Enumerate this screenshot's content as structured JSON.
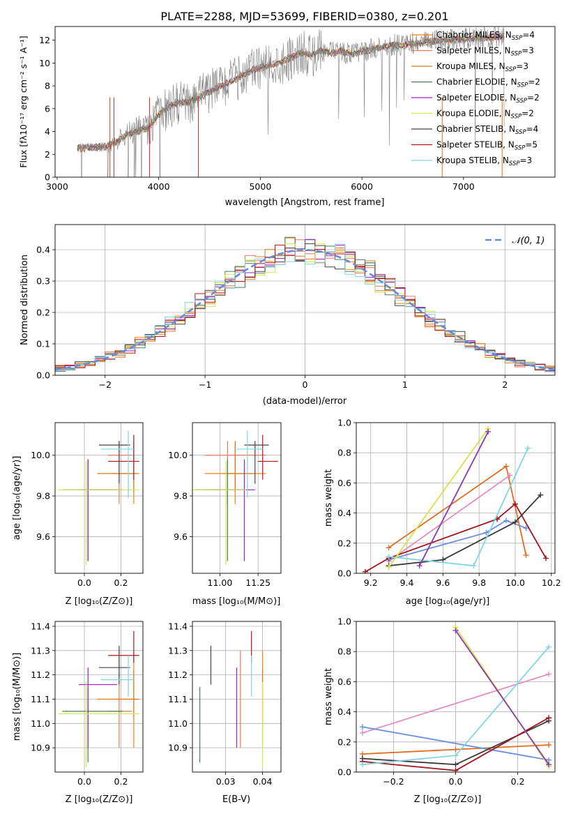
{
  "chart_data": [
    {
      "id": "spectrum",
      "type": "line",
      "title": "PLATE=2288, MJD=53699, FIBERID=0380, z=0.201",
      "xlabel": "wavelength [Angstrom, rest frame]",
      "ylabel": "Flux [fλ10⁻¹⁷ erg cm⁻² s⁻¹ A⁻¹]",
      "xlim": [
        2980,
        7900
      ],
      "ylim": [
        0,
        13.2
      ],
      "xticks": [
        3000,
        4000,
        5000,
        6000,
        7000
      ],
      "yticks": [
        0,
        2,
        4,
        6,
        8,
        10,
        12
      ],
      "grid": false,
      "legend_position": "top-right",
      "data_color": "#808080",
      "data_x": [
        3200,
        3300,
        3400,
        3500,
        3600,
        3700,
        3800,
        3900,
        4000,
        4100,
        4200,
        4300,
        4400,
        4500,
        4600,
        4700,
        4800,
        4900,
        5000,
        5100,
        5200,
        5300,
        5400,
        5500,
        5600,
        5700,
        5800,
        5900,
        6000,
        6100,
        6200,
        6300,
        6400,
        6500,
        6600,
        6700,
        6800,
        6900,
        7000,
        7100,
        7200,
        7300,
        7400
      ],
      "data_y": [
        2.5,
        2.6,
        2.6,
        2.7,
        3.2,
        3.8,
        4.1,
        4.3,
        5.5,
        6.2,
        6.5,
        6.6,
        7.0,
        7.5,
        8.0,
        8.3,
        8.8,
        9.3,
        9.6,
        9.8,
        10.0,
        10.5,
        10.9,
        10.7,
        11.1,
        10.9,
        11.0,
        10.8,
        11.0,
        11.2,
        11.4,
        11.6,
        11.5,
        11.7,
        11.8,
        11.9,
        12.0,
        12.1,
        12.1,
        12.2,
        12.2,
        12.3,
        12.3
      ],
      "models": [
        {
          "label": "Chabrier MILES, N",
          "sub": "SSP",
          "suffix": "=4",
          "color": "#ff7f0e"
        },
        {
          "label": "Salpeter MILES, N",
          "sub": "SSP",
          "suffix": "=3",
          "color": "#e8775a"
        },
        {
          "label": "Kroupa MILES, N",
          "sub": "SSP",
          "suffix": "=3",
          "color": "#d97a1e"
        },
        {
          "label": "Chabrier ELODIE, N",
          "sub": "SSP",
          "suffix": "=2",
          "color": "#4a7a5c"
        },
        {
          "label": "Salpeter ELODIE, N",
          "sub": "SSP",
          "suffix": "=2",
          "color": "#a020c0"
        },
        {
          "label": "Kroupa ELODIE, N",
          "sub": "SSP",
          "suffix": "=2",
          "color": "#cfe84a"
        },
        {
          "label": "Chabrier STELIB, N",
          "sub": "SSP",
          "suffix": "=4",
          "color": "#444444"
        },
        {
          "label": "Salpeter STELIB, N",
          "sub": "SSP",
          "suffix": "=5",
          "color": "#b0141e"
        },
        {
          "label": "Kroupa STELIB, N",
          "sub": "SSP",
          "suffix": "=3",
          "color": "#7fd6e0"
        }
      ]
    },
    {
      "id": "residuals",
      "type": "line",
      "xlabel": "(data-model)/error",
      "ylabel": "Normed distribution",
      "xlim": [
        -2.5,
        2.5
      ],
      "ylim": [
        0,
        0.48
      ],
      "xticks": [
        -2,
        -1,
        0,
        1,
        2
      ],
      "xtick_labels": [
        "−2",
        "−1",
        "0",
        "1",
        "2"
      ],
      "yticks": [
        0.0,
        0.1,
        0.2,
        0.3,
        0.4
      ],
      "grid": true,
      "legend_position": "top-right",
      "reference": {
        "label": "𝒩(0, 1)",
        "color": "#6688dd",
        "mean": 0,
        "sigma": 1
      }
    },
    {
      "id": "age-vs-Z",
      "type": "scatter",
      "xlabel": "Z [log₁₀(Z/Z⊙)]",
      "ylabel": "age  [log₁₀(age/yr)]",
      "xlim": [
        -0.16,
        0.32
      ],
      "ylim": [
        9.42,
        10.16
      ],
      "xticks": [
        0.0,
        0.2
      ],
      "yticks": [
        9.6,
        9.8,
        10.0
      ],
      "grid": true
    },
    {
      "id": "age-vs-mass",
      "type": "scatter",
      "xlabel": "mass [log₁₀(M/M⊙)]",
      "xlim": [
        10.82,
        11.4
      ],
      "ylim": [
        9.42,
        10.16
      ],
      "xticks": [
        11.0,
        11.25
      ],
      "yticks": [
        9.6,
        9.8,
        10.0
      ],
      "grid": true
    },
    {
      "id": "weight-vs-age",
      "type": "line",
      "xlabel": "age  [log₁₀(age/yr)]",
      "ylabel": "mass weight",
      "xlim": [
        9.12,
        10.22
      ],
      "ylim": [
        0,
        1.0
      ],
      "xticks": [
        9.2,
        9.4,
        9.6,
        9.8,
        10.0,
        10.2
      ],
      "yticks": [
        0.0,
        0.2,
        0.4,
        0.6,
        0.8,
        1.0
      ],
      "grid": true
    },
    {
      "id": "mass-vs-Z",
      "type": "scatter",
      "xlabel": "Z [log₁₀(Z/Z⊙)]",
      "ylabel": "mass [log₁₀(M/M⊙)]",
      "xlim": [
        -0.16,
        0.32
      ],
      "ylim": [
        10.8,
        11.42
      ],
      "xticks": [
        0.0,
        0.2
      ],
      "yticks": [
        10.9,
        11.0,
        11.1,
        11.2,
        11.3,
        11.4
      ],
      "grid": true
    },
    {
      "id": "mass-vs-ebv",
      "type": "scatter",
      "xlabel": "E(B-V)",
      "xlim": [
        0.021,
        0.045
      ],
      "ylim": [
        10.8,
        11.42
      ],
      "xticks": [
        0.03,
        0.04
      ],
      "yticks": [
        10.9,
        11.0,
        11.1,
        11.2,
        11.3,
        11.4
      ],
      "grid": true
    },
    {
      "id": "weight-vs-Z",
      "type": "line",
      "xlabel": "Z [log₁₀(Z/Z⊙)]",
      "ylabel": "mass weight",
      "xlim": [
        -0.32,
        0.32
      ],
      "ylim": [
        0,
        1.0
      ],
      "xticks": [
        -0.2,
        0.0,
        0.2
      ],
      "xtick_labels": [
        "−0.2",
        "0.0",
        "0.2"
      ],
      "yticks": [
        0.0,
        0.2,
        0.4,
        0.6,
        0.8,
        1.0
      ],
      "grid": true
    }
  ],
  "model_params": [
    {
      "Z": 0.27,
      "Z_err": [
        0.15,
        0.28
      ],
      "age": 9.91,
      "age_err": [
        9.76,
        10.06
      ],
      "mass": 11.1,
      "mass_err": [
        10.9,
        11.3
      ],
      "ebv": 0.04
    },
    {
      "Z": 0.19,
      "Z_err": [
        0.13,
        0.26
      ],
      "age": 10.0,
      "age_err": [
        9.76,
        10.07
      ],
      "mass": 11.05,
      "mass_err": [
        10.9,
        11.3
      ],
      "ebv": 0.034
    },
    {
      "Z": 0.27,
      "Z_err": [
        0.07,
        0.3
      ],
      "age": 9.91,
      "age_err": [
        9.82,
        10.07
      ],
      "mass": 11.1,
      "mass_err": [
        11.02,
        11.22
      ],
      "ebv": 0.04
    },
    {
      "Z": 0.02,
      "Z_err": [
        -0.12,
        0.21
      ],
      "age": 9.83,
      "age_err": [
        9.48,
        9.98
      ],
      "mass": 11.05,
      "mass_err": [
        10.84,
        11.15
      ],
      "ebv": 0.023
    },
    {
      "Z": 0.02,
      "Z_err": [
        -0.03,
        0.18
      ],
      "age": 9.83,
      "age_err": [
        9.48,
        9.98
      ],
      "mass": 11.16,
      "mass_err": [
        10.9,
        11.23
      ],
      "ebv": 0.033
    },
    {
      "Z": 0.01,
      "Z_err": [
        -0.14,
        0.3
      ],
      "age": 9.83,
      "age_err": [
        9.46,
        9.97
      ],
      "mass": 11.04,
      "mass_err": [
        10.82,
        11.17
      ],
      "ebv": 0.04
    },
    {
      "Z": 0.19,
      "Z_err": [
        0.08,
        0.25
      ],
      "age": 10.05,
      "age_err": [
        9.86,
        10.07
      ],
      "mass": 11.23,
      "mass_err": [
        11.16,
        11.32
      ],
      "ebv": 0.026
    },
    {
      "Z": 0.27,
      "Z_err": [
        0.13,
        0.3
      ],
      "age": 9.97,
      "age_err": [
        9.88,
        10.1
      ],
      "mass": 11.28,
      "mass_err": [
        11.25,
        11.38
      ],
      "ebv": 0.037
    },
    {
      "Z": 0.24,
      "Z_err": [
        0.09,
        0.27
      ],
      "age": 10.03,
      "age_err": [
        9.79,
        10.12
      ],
      "mass": 11.18,
      "mass_err": [
        11.11,
        11.28
      ],
      "ebv": 0.037
    }
  ],
  "weight_age_series": [
    {
      "color": "#e36c1e",
      "points": [
        [
          9.3,
          0.17
        ],
        [
          9.95,
          0.71
        ],
        [
          10.06,
          0.12
        ]
      ]
    },
    {
      "color": "#e48cc0",
      "points": [
        [
          9.3,
          0.08
        ],
        [
          9.97,
          0.65
        ]
      ]
    },
    {
      "color": "#6a8fe0",
      "points": [
        [
          9.3,
          0.09
        ],
        [
          9.84,
          0.27
        ],
        [
          9.95,
          0.35
        ],
        [
          10.06,
          0.3
        ]
      ]
    },
    {
      "color": "#3a3a3a",
      "points": [
        [
          9.3,
          0.05
        ],
        [
          9.6,
          0.09
        ],
        [
          10.0,
          0.34
        ],
        [
          10.14,
          0.52
        ]
      ]
    },
    {
      "color": "#a0141e",
      "points": [
        [
          9.17,
          0.01
        ],
        [
          9.3,
          0.1
        ],
        [
          9.9,
          0.36
        ],
        [
          10.0,
          0.46
        ],
        [
          10.17,
          0.1
        ]
      ]
    },
    {
      "color": "#7fd6e0",
      "points": [
        [
          9.3,
          0.11
        ],
        [
          9.77,
          0.05
        ],
        [
          10.07,
          0.83
        ]
      ]
    },
    {
      "color": "#d8e04a",
      "points": [
        [
          9.3,
          0.04
        ],
        [
          9.85,
          0.96
        ]
      ]
    },
    {
      "color": "#8a3ab0",
      "points": [
        [
          9.47,
          0.05
        ],
        [
          9.85,
          0.94
        ]
      ]
    }
  ],
  "weight_Z_series": [
    {
      "color": "#e36c1e",
      "points": [
        [
          -0.3,
          0.12
        ],
        [
          0.0,
          0.15
        ],
        [
          0.3,
          0.18
        ]
      ]
    },
    {
      "color": "#e48cc0",
      "points": [
        [
          -0.3,
          0.26
        ],
        [
          0.3,
          0.65
        ]
      ]
    },
    {
      "color": "#6a8fe0",
      "points": [
        [
          -0.3,
          0.3
        ],
        [
          0.3,
          0.08
        ]
      ]
    },
    {
      "color": "#3a3a3a",
      "points": [
        [
          -0.3,
          0.09
        ],
        [
          0.0,
          0.05
        ],
        [
          0.3,
          0.34
        ]
      ]
    },
    {
      "color": "#a0141e",
      "points": [
        [
          -0.3,
          0.07
        ],
        [
          0.0,
          0.01
        ],
        [
          0.3,
          0.36
        ]
      ]
    },
    {
      "color": "#7fd6e0",
      "points": [
        [
          -0.3,
          0.05
        ],
        [
          0.0,
          0.11
        ],
        [
          0.3,
          0.83
        ]
      ]
    },
    {
      "color": "#d8e04a",
      "points": [
        [
          0.0,
          0.96
        ],
        [
          0.3,
          0.04
        ]
      ]
    },
    {
      "color": "#8a3ab0",
      "points": [
        [
          0.0,
          0.94
        ],
        [
          0.3,
          0.05
        ]
      ]
    }
  ]
}
